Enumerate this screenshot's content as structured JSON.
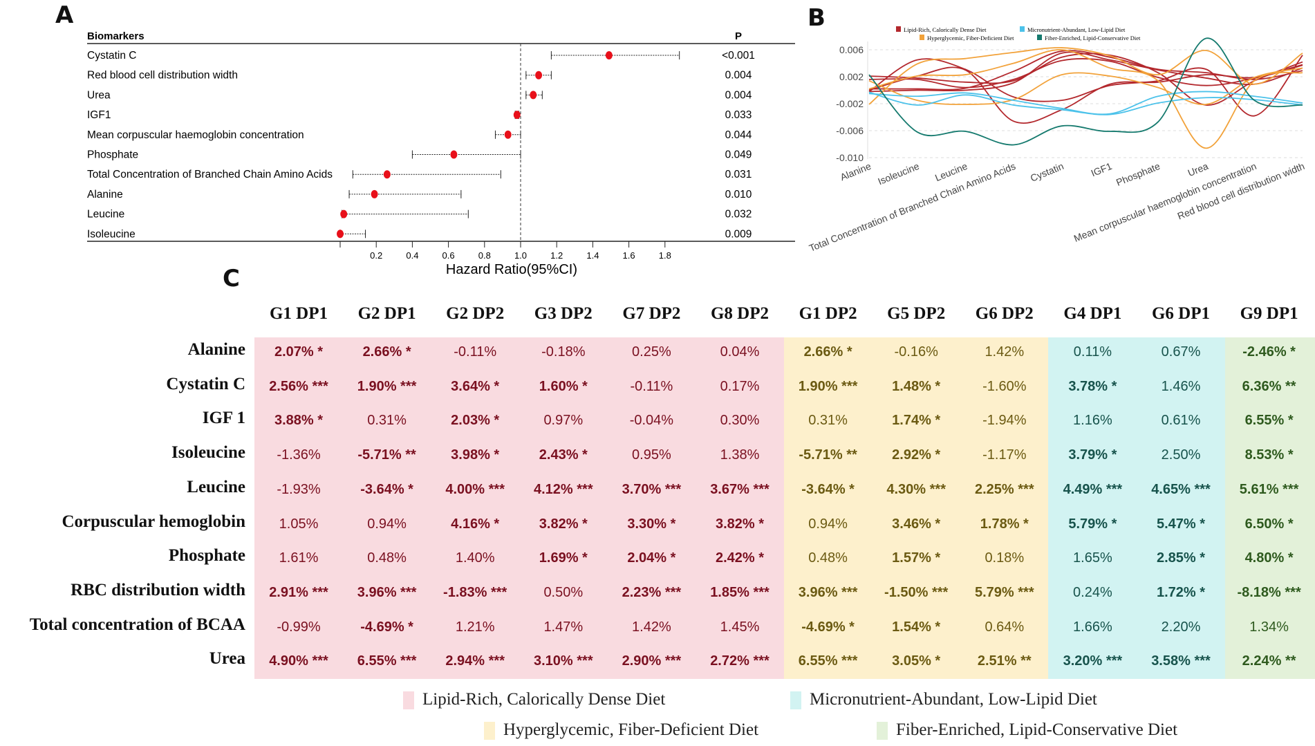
{
  "panel_labels": {
    "a": "A",
    "b": "B",
    "c": "C"
  },
  "chart_data": [
    {
      "type": "forest",
      "header_left": "Biomarkers",
      "header_right": "P",
      "xlabel": "Hazard Ratio(95%CI)",
      "xlim": [
        0,
        1.8
      ],
      "xticks": [
        "0.2",
        "0.4",
        "0.6",
        "0.8",
        "1.0",
        "1.2",
        "1.4",
        "1.6",
        "1.8"
      ],
      "reference_line": 1.0,
      "point_color": "#e8101a",
      "rows": [
        {
          "label": "Cystatin C",
          "hr": 1.49,
          "lo": 1.17,
          "hi": 1.88,
          "p": "<0.001"
        },
        {
          "label": "Red blood cell distribution width",
          "hr": 1.1,
          "lo": 1.03,
          "hi": 1.17,
          "p": "0.004"
        },
        {
          "label": "Urea",
          "hr": 1.07,
          "lo": 1.03,
          "hi": 1.12,
          "p": "0.004"
        },
        {
          "label": "IGF1",
          "hr": 0.98,
          "lo": 0.97,
          "hi": 0.99,
          "p": "0.033"
        },
        {
          "label": "Mean corpuscular haemoglobin concentration",
          "hr": 0.93,
          "lo": 0.86,
          "hi": 1.0,
          "p": "0.044"
        },
        {
          "label": "Phosphate",
          "hr": 0.63,
          "lo": 0.4,
          "hi": 1.0,
          "p": "0.049"
        },
        {
          "label": "Total Concentration of Branched Chain Amino Acids",
          "hr": 0.26,
          "lo": 0.07,
          "hi": 0.89,
          "p": "0.031"
        },
        {
          "label": "Alanine",
          "hr": 0.19,
          "lo": 0.05,
          "hi": 0.67,
          "p": "0.010"
        },
        {
          "label": "Leucine",
          "hr": 0.02,
          "lo": 0.01,
          "hi": 0.71,
          "p": "0.032"
        },
        {
          "label": "Isoleucine",
          "hr": 0.0,
          "lo": 0.0,
          "hi": 0.14,
          "p": "0.009"
        }
      ]
    },
    {
      "type": "line",
      "categories": [
        "Alanine",
        "Isoleucine",
        "Leucine",
        "Total Concentration of Branched Chain Amino Acids",
        "Cystatin",
        "IGF1",
        "Phosphate",
        "Urea",
        "Mean corpuscular haemoglobin concentration",
        "Red blood cell distribution width"
      ],
      "yticks": [
        "0.006",
        "0.002",
        "-0.002",
        "-0.006",
        "-0.010"
      ],
      "ylim": [
        -0.01,
        0.006
      ],
      "grid": true,
      "legend_position": "top",
      "legend": [
        {
          "name": "Lipid-Rich, Calorically Dense Diet",
          "color": "#b3282d"
        },
        {
          "name": "Micronutrient-Abundant, Low-Lipid Diet",
          "color": "#4cc2ea"
        },
        {
          "name": "Hyperglycemic, Fiber-Deficient Diet",
          "color": "#f2a23a"
        },
        {
          "name": "Fiber-Enriched, Lipid-Conservative Diet",
          "color": "#157a6e"
        }
      ],
      "series": [
        {
          "group": 0,
          "values": [
            -0.0002,
            0.0045,
            0.0031,
            -0.001,
            -0.0015,
            0.0007,
            0.0014,
            0.0031,
            -0.0038,
            0.0052
          ]
        },
        {
          "group": 0,
          "values": [
            0.0021,
            0.0018,
            0.0012,
            0.0014,
            0.0049,
            0.0052,
            0.0026,
            -0.0022,
            0.0014,
            0.0042
          ]
        },
        {
          "group": 0,
          "values": [
            0.0,
            0.0021,
            0.003,
            -0.0046,
            -0.0029,
            0.0009,
            0.0012,
            0.0023,
            0.0019,
            0.0037
          ]
        },
        {
          "group": 0,
          "values": [
            0.0016,
            0.0016,
            0.0004,
            0.0016,
            0.0044,
            0.0043,
            0.0019,
            0.0007,
            0.0018,
            0.0038
          ]
        },
        {
          "group": 0,
          "values": [
            -0.0002,
            0.0,
            0.0,
            0.0011,
            0.0055,
            0.0045,
            0.003,
            0.0018,
            0.0009,
            0.0033
          ]
        },
        {
          "group": 0,
          "values": [
            0.0002,
            0.0002,
            0.0003,
            0.0028,
            0.0058,
            0.0049,
            0.0031,
            0.0026,
            0.0016,
            0.0029
          ]
        },
        {
          "group": 2,
          "values": [
            -0.0021,
            0.0039,
            0.0047,
            0.0056,
            0.0063,
            0.0051,
            0.0023,
            0.0059,
            0.0009,
            0.0055
          ]
        },
        {
          "group": 2,
          "values": [
            0.0014,
            -0.0015,
            -0.0021,
            -0.0014,
            0.0023,
            0.0021,
            0.0004,
            -0.0021,
            0.0019,
            0.0033
          ]
        },
        {
          "group": 2,
          "values": [
            0.0002,
            0.0021,
            0.0023,
            0.004,
            0.006,
            0.0033,
            0.0014,
            -0.0086,
            0.0014,
            0.0026
          ]
        },
        {
          "group": 1,
          "values": [
            -0.0003,
            -0.0022,
            -0.0007,
            -0.0022,
            -0.0029,
            -0.0036,
            -0.0019,
            -0.0011,
            -0.0014,
            -0.0022
          ]
        },
        {
          "group": 1,
          "values": [
            -0.0005,
            -0.0009,
            -0.0004,
            -0.0015,
            -0.0027,
            -0.0035,
            -0.0009,
            -0.0002,
            -0.0009,
            -0.0019
          ]
        },
        {
          "group": 3,
          "values": [
            0.0023,
            -0.0062,
            -0.0061,
            -0.0081,
            -0.0053,
            -0.0061,
            -0.0047,
            0.0077,
            -0.0015,
            -0.0022
          ]
        }
      ]
    },
    {
      "type": "table",
      "columns": [
        {
          "label": "G1 DP1",
          "group": 0
        },
        {
          "label": "G2 DP1",
          "group": 0
        },
        {
          "label": "G2 DP2",
          "group": 0
        },
        {
          "label": "G3 DP2",
          "group": 0
        },
        {
          "label": "G7 DP2",
          "group": 0
        },
        {
          "label": "G8 DP2",
          "group": 0
        },
        {
          "label": "G1 DP2",
          "group": 2
        },
        {
          "label": "G5 DP2",
          "group": 2
        },
        {
          "label": "G6 DP2",
          "group": 2
        },
        {
          "label": "G4 DP1",
          "group": 1
        },
        {
          "label": "G6 DP1",
          "group": 1
        },
        {
          "label": "G9 DP1",
          "group": 3
        }
      ],
      "group_colors": {
        "bg": [
          "#f9dbe0",
          "#d2f3f2",
          "#fdf0cc",
          "#e3f1d9"
        ],
        "text": [
          "#7a1020",
          "#17534c",
          "#6b5a12",
          "#2e5a1e"
        ]
      },
      "rows": [
        {
          "label": "Alanine",
          "cells": [
            "2.07% *",
            "2.66% *",
            "-0.11%",
            "-0.18%",
            "0.25%",
            "0.04%",
            "2.66% *",
            "-0.16%",
            "1.42%",
            "0.11%",
            "0.67%",
            "-2.46% *"
          ]
        },
        {
          "label": "Cystatin C",
          "cells": [
            "2.56% ***",
            "1.90% ***",
            "3.64% *",
            "1.60% *",
            "-0.11%",
            "0.17%",
            "1.90% ***",
            "1.48% *",
            "-1.60%",
            "3.78% *",
            "1.46%",
            "6.36% **"
          ]
        },
        {
          "label": "IGF 1",
          "cells": [
            "3.88% *",
            "0.31%",
            "2.03% *",
            "0.97%",
            "-0.04%",
            "0.30%",
            "0.31%",
            "1.74% *",
            "-1.94%",
            "1.16%",
            "0.61%",
            "6.55% *"
          ]
        },
        {
          "label": "Isoleucine",
          "cells": [
            "-1.36%",
            "-5.71% **",
            "3.98% *",
            "2.43% *",
            "0.95%",
            "1.38%",
            "-5.71% **",
            "2.92% *",
            "-1.17%",
            "3.79% *",
            "2.50%",
            "8.53% *"
          ]
        },
        {
          "label": "Leucine",
          "cells": [
            "-1.93%",
            "-3.64% *",
            "4.00% ***",
            "4.12% ***",
            "3.70% ***",
            "3.67% ***",
            "-3.64% *",
            "4.30% ***",
            "2.25% ***",
            "4.49% ***",
            "4.65% ***",
            "5.61% ***"
          ]
        },
        {
          "label": "Corpuscular hemoglobin",
          "cells": [
            "1.05%",
            "0.94%",
            "4.16% *",
            "3.82% *",
            "3.30% *",
            "3.82% *",
            "0.94%",
            "3.46% *",
            "1.78% *",
            "5.79% *",
            "5.47% *",
            "6.50% *"
          ]
        },
        {
          "label": "Phosphate",
          "cells": [
            "1.61%",
            "0.48%",
            "1.40%",
            "1.69% *",
            "2.04% *",
            "2.42% *",
            "0.48%",
            "1.57% *",
            "0.18%",
            "1.65%",
            "2.85% *",
            "4.80% *"
          ]
        },
        {
          "label": "RBC distribution width",
          "cells": [
            "2.91% ***",
            "3.96% ***",
            "-1.83% ***",
            "0.50%",
            "2.23% ***",
            "1.85% ***",
            "3.96% ***",
            "-1.50% ***",
            "5.79% ***",
            "0.24%",
            "1.72% *",
            "-8.18% ***"
          ]
        },
        {
          "label": "Total concentration of BCAA",
          "cells": [
            "-0.99%",
            "-4.69% *",
            "1.21%",
            "1.47%",
            "1.42%",
            "1.45%",
            "-4.69% *",
            "1.54% *",
            "0.64%",
            "1.66%",
            "2.20%",
            "1.34%"
          ]
        },
        {
          "label": "Urea",
          "cells": [
            "4.90% ***",
            "6.55% ***",
            "2.94% ***",
            "3.10% ***",
            "2.90% ***",
            "2.72% ***",
            "6.55% ***",
            "3.05% *",
            "2.51% **",
            "3.20% ***",
            "3.58% ***",
            "2.24% **"
          ]
        }
      ],
      "legend": [
        {
          "name": "Lipid-Rich, Calorically Dense Diet",
          "group": 0
        },
        {
          "name": "Micronutrient-Abundant, Low-Lipid Diet",
          "group": 1
        },
        {
          "name": "Hyperglycemic, Fiber-Deficient Diet",
          "group": 2
        },
        {
          "name": "Fiber-Enriched, Lipid-Conservative Diet",
          "group": 3
        }
      ]
    }
  ]
}
